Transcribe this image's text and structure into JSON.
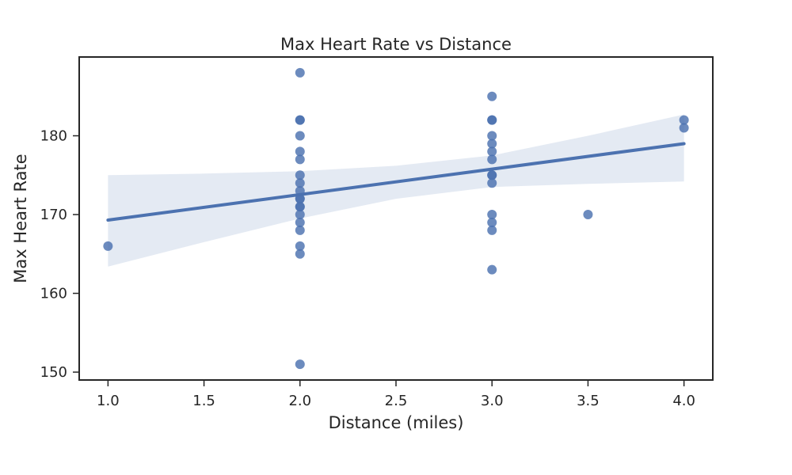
{
  "chart_data": {
    "type": "scatter",
    "title": "Max Heart Rate vs Distance",
    "xlabel": "Distance (miles)",
    "ylabel": "Max Heart Rate",
    "xlim": [
      0.85,
      4.15
    ],
    "ylim": [
      149,
      190
    ],
    "x_ticks": [
      1.0,
      1.5,
      2.0,
      2.5,
      3.0,
      3.5,
      4.0
    ],
    "x_tick_labels": [
      "1.0",
      "1.5",
      "2.0",
      "2.5",
      "3.0",
      "3.5",
      "4.0"
    ],
    "y_ticks": [
      150,
      160,
      170,
      180
    ],
    "y_tick_labels": [
      "150",
      "160",
      "170",
      "180"
    ],
    "grid": false,
    "colors": {
      "points": "#4c72b0",
      "regression_line": "#4c72b0",
      "confidence_band": "#4c72b0",
      "axes": "#262626"
    },
    "series": [
      {
        "values": [
          {
            "x": 1.0,
            "y": 166
          },
          {
            "x": 2.0,
            "y": 188
          },
          {
            "x": 2.0,
            "y": 182
          },
          {
            "x": 2.0,
            "y": 182
          },
          {
            "x": 2.0,
            "y": 180
          },
          {
            "x": 2.0,
            "y": 178
          },
          {
            "x": 2.0,
            "y": 177
          },
          {
            "x": 2.0,
            "y": 175
          },
          {
            "x": 2.0,
            "y": 174
          },
          {
            "x": 2.0,
            "y": 173
          },
          {
            "x": 2.0,
            "y": 172
          },
          {
            "x": 2.0,
            "y": 172
          },
          {
            "x": 2.0,
            "y": 171
          },
          {
            "x": 2.0,
            "y": 171
          },
          {
            "x": 2.0,
            "y": 170
          },
          {
            "x": 2.0,
            "y": 169
          },
          {
            "x": 2.0,
            "y": 168
          },
          {
            "x": 2.0,
            "y": 166
          },
          {
            "x": 2.0,
            "y": 165
          },
          {
            "x": 2.0,
            "y": 151
          },
          {
            "x": 3.0,
            "y": 185
          },
          {
            "x": 3.0,
            "y": 182
          },
          {
            "x": 3.0,
            "y": 182
          },
          {
            "x": 3.0,
            "y": 180
          },
          {
            "x": 3.0,
            "y": 179
          },
          {
            "x": 3.0,
            "y": 178
          },
          {
            "x": 3.0,
            "y": 177
          },
          {
            "x": 3.0,
            "y": 175
          },
          {
            "x": 3.0,
            "y": 175
          },
          {
            "x": 3.0,
            "y": 174
          },
          {
            "x": 3.0,
            "y": 170
          },
          {
            "x": 3.0,
            "y": 169
          },
          {
            "x": 3.0,
            "y": 168
          },
          {
            "x": 3.0,
            "y": 163
          },
          {
            "x": 3.5,
            "y": 170
          },
          {
            "x": 4.0,
            "y": 182
          },
          {
            "x": 4.0,
            "y": 181
          }
        ]
      }
    ],
    "regression": {
      "type": "linear",
      "line": [
        {
          "x": 1.0,
          "y": 169.3
        },
        {
          "x": 4.0,
          "y": 179.0
        }
      ],
      "confidence_band": {
        "upper": [
          {
            "x": 1.0,
            "y": 175.0
          },
          {
            "x": 1.5,
            "y": 175.2
          },
          {
            "x": 2.0,
            "y": 175.5
          },
          {
            "x": 2.5,
            "y": 176.2
          },
          {
            "x": 3.0,
            "y": 177.5
          },
          {
            "x": 3.5,
            "y": 180.0
          },
          {
            "x": 4.0,
            "y": 182.7
          }
        ],
        "lower": [
          {
            "x": 1.0,
            "y": 163.4
          },
          {
            "x": 1.5,
            "y": 166.5
          },
          {
            "x": 2.0,
            "y": 169.5
          },
          {
            "x": 2.5,
            "y": 172.0
          },
          {
            "x": 3.0,
            "y": 173.5
          },
          {
            "x": 3.5,
            "y": 173.9
          },
          {
            "x": 4.0,
            "y": 174.2
          }
        ]
      }
    }
  }
}
